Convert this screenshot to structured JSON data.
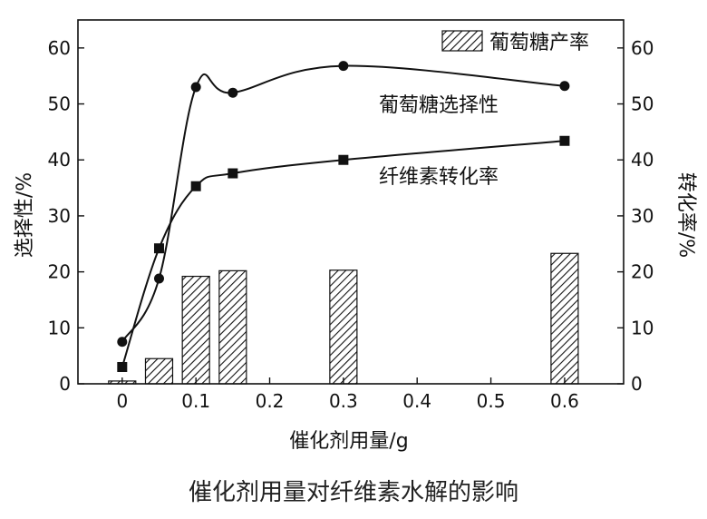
{
  "chart_data": {
    "type": "bar",
    "caption": "催化剂用量对纤维素水解的影响",
    "xlabel": "催化剂用量/g",
    "ylabel_left": "选择性/%",
    "ylabel_right": "转化率/%",
    "xlim": [
      -0.06,
      0.68
    ],
    "ylim_left": [
      0,
      65
    ],
    "ylim_right": [
      0,
      65
    ],
    "x_ticks": [
      "0",
      "0.1",
      "0.2",
      "0.3",
      "0.4",
      "0.5",
      "0.6"
    ],
    "y_ticks_left": [
      "0",
      "10",
      "20",
      "30",
      "40",
      "50",
      "60"
    ],
    "y_ticks_right": [
      "0",
      "10",
      "20",
      "30",
      "40",
      "50",
      "60"
    ],
    "legend": {
      "label": "葡萄糖产率",
      "position": "top-right"
    },
    "bars": {
      "name": "葡萄糖产率",
      "x": [
        0,
        0.05,
        0.1,
        0.15,
        0.3,
        0.6
      ],
      "values": [
        0.5,
        4.5,
        19.2,
        20.2,
        20.3,
        23.3
      ]
    },
    "series": [
      {
        "name": "葡萄糖选择性",
        "marker": "circle",
        "x": [
          0,
          0.05,
          0.1,
          0.15,
          0.3,
          0.6
        ],
        "y": [
          7.5,
          18.8,
          53.0,
          52.0,
          56.8,
          53.2
        ]
      },
      {
        "name": "纤维素转化率",
        "marker": "square",
        "x": [
          0,
          0.05,
          0.1,
          0.15,
          0.3,
          0.6
        ],
        "y": [
          3.0,
          24.2,
          35.3,
          37.6,
          40.0,
          43.4
        ]
      }
    ]
  }
}
